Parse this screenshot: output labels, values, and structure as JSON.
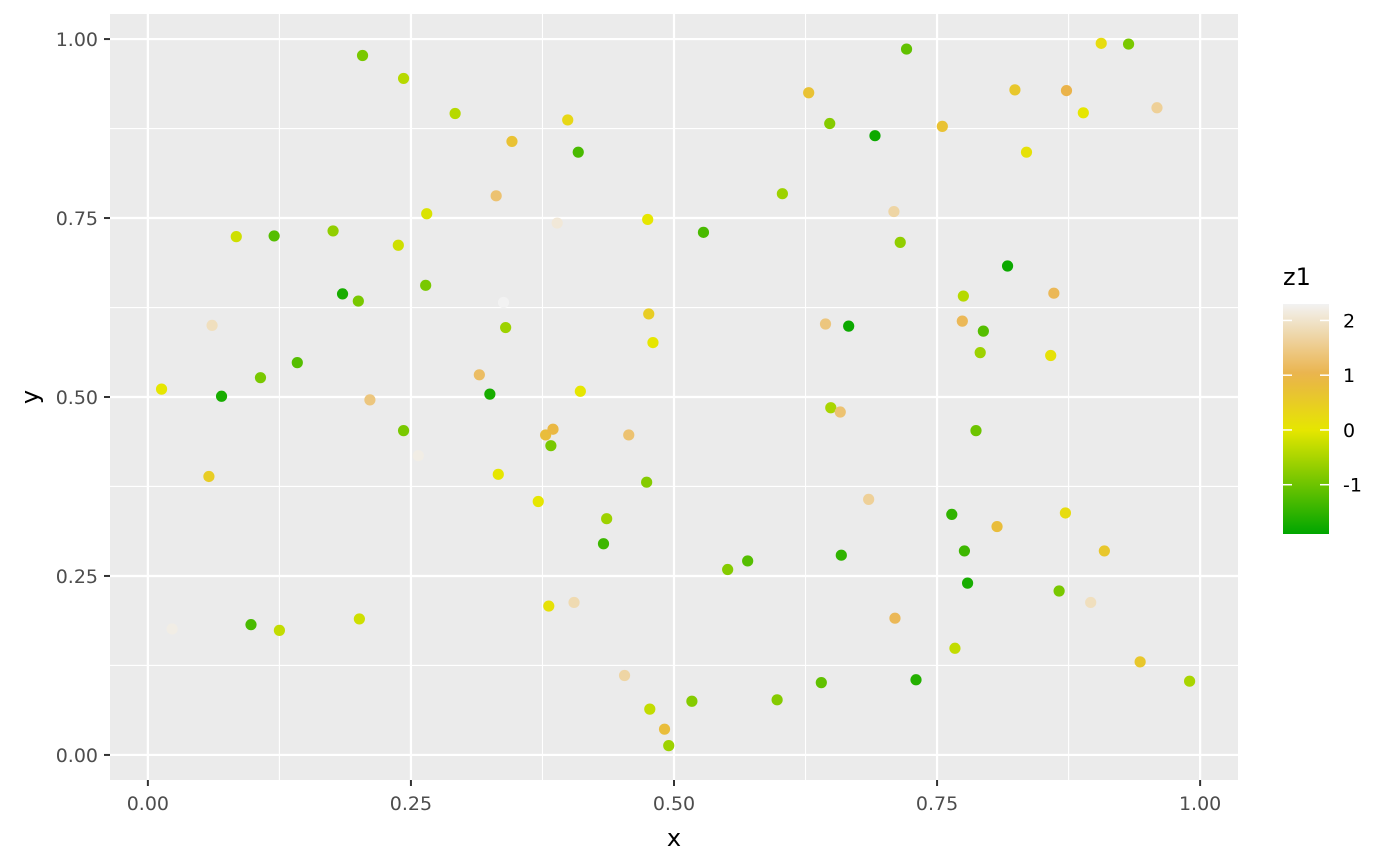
{
  "chart_data": {
    "type": "scatter",
    "xlabel": "x",
    "ylabel": "y",
    "xlim": [
      -0.036,
      1.036
    ],
    "ylim": [
      -0.035,
      1.035
    ],
    "x_ticks": [
      0,
      0.25,
      0.5,
      0.75,
      1
    ],
    "x_tick_labels": [
      "0.00",
      "0.25",
      "0.50",
      "0.75",
      "1.00"
    ],
    "y_ticks": [
      0,
      0.25,
      0.5,
      0.75,
      1
    ],
    "y_tick_labels": [
      "0.00",
      "0.25",
      "0.50",
      "0.75",
      "1.00"
    ],
    "grid": true,
    "legend": {
      "title": "z1",
      "placement": "right",
      "range": [
        -1.9,
        2.3
      ],
      "ticks": [
        -1,
        0,
        1,
        2
      ],
      "tick_labels": [
        "-1",
        "0",
        "1",
        "2"
      ],
      "colors": [
        "#00a600",
        "#e6e600",
        "#eab34a",
        "#f2f2f2"
      ],
      "color_stops": [
        -1.9,
        0,
        1,
        2.3
      ]
    },
    "panel_background": "#ebebeb",
    "grid_color": "#ffffff",
    "points": [
      {
        "x": 0.013,
        "y": 0.511,
        "z": 0.0
      },
      {
        "x": 0.023,
        "y": 0.176,
        "z": 2.2
      },
      {
        "x": 0.058,
        "y": 0.389,
        "z": 0.5
      },
      {
        "x": 0.061,
        "y": 0.6,
        "z": 1.9
      },
      {
        "x": 0.07,
        "y": 0.501,
        "z": -1.7
      },
      {
        "x": 0.084,
        "y": 0.724,
        "z": -0.2
      },
      {
        "x": 0.098,
        "y": 0.182,
        "z": -1.3
      },
      {
        "x": 0.107,
        "y": 0.527,
        "z": -0.9
      },
      {
        "x": 0.12,
        "y": 0.725,
        "z": -1.2
      },
      {
        "x": 0.125,
        "y": 0.174,
        "z": -0.3
      },
      {
        "x": 0.142,
        "y": 0.548,
        "z": -1.2
      },
      {
        "x": 0.176,
        "y": 0.732,
        "z": -0.7
      },
      {
        "x": 0.185,
        "y": 0.644,
        "z": -1.7
      },
      {
        "x": 0.2,
        "y": 0.634,
        "z": -0.9
      },
      {
        "x": 0.201,
        "y": 0.19,
        "z": -0.2
      },
      {
        "x": 0.204,
        "y": 0.977,
        "z": -0.9
      },
      {
        "x": 0.211,
        "y": 0.496,
        "z": 1.4
      },
      {
        "x": 0.238,
        "y": 0.712,
        "z": -0.2
      },
      {
        "x": 0.243,
        "y": 0.945,
        "z": -0.4
      },
      {
        "x": 0.243,
        "y": 0.453,
        "z": -0.9
      },
      {
        "x": 0.257,
        "y": 0.418,
        "z": 2.2
      },
      {
        "x": 0.264,
        "y": 0.656,
        "z": -0.9
      },
      {
        "x": 0.265,
        "y": 0.756,
        "z": -0.1
      },
      {
        "x": 0.292,
        "y": 0.896,
        "z": -0.4
      },
      {
        "x": 0.315,
        "y": 0.531,
        "z": 1.2
      },
      {
        "x": 0.325,
        "y": 0.504,
        "z": -1.7
      },
      {
        "x": 0.331,
        "y": 0.781,
        "z": 1.3
      },
      {
        "x": 0.333,
        "y": 0.392,
        "z": 0.0
      },
      {
        "x": 0.338,
        "y": 0.632,
        "z": 2.3
      },
      {
        "x": 0.34,
        "y": 0.597,
        "z": -0.6
      },
      {
        "x": 0.346,
        "y": 0.857,
        "z": 0.7
      },
      {
        "x": 0.371,
        "y": 0.354,
        "z": 0.0
      },
      {
        "x": 0.378,
        "y": 0.447,
        "z": 0.8
      },
      {
        "x": 0.381,
        "y": 0.208,
        "z": 0.1
      },
      {
        "x": 0.383,
        "y": 0.432,
        "z": -0.9
      },
      {
        "x": 0.385,
        "y": 0.455,
        "z": 0.9
      },
      {
        "x": 0.389,
        "y": 0.743,
        "z": 2.1
      },
      {
        "x": 0.399,
        "y": 0.887,
        "z": 0.3
      },
      {
        "x": 0.405,
        "y": 0.213,
        "z": 1.8
      },
      {
        "x": 0.409,
        "y": 0.842,
        "z": -1.3
      },
      {
        "x": 0.411,
        "y": 0.508,
        "z": 0.0
      },
      {
        "x": 0.433,
        "y": 0.295,
        "z": -1.4
      },
      {
        "x": 0.436,
        "y": 0.33,
        "z": -0.6
      },
      {
        "x": 0.453,
        "y": 0.111,
        "z": 1.7
      },
      {
        "x": 0.457,
        "y": 0.447,
        "z": 1.3
      },
      {
        "x": 0.474,
        "y": 0.381,
        "z": -0.8
      },
      {
        "x": 0.475,
        "y": 0.748,
        "z": 0.0
      },
      {
        "x": 0.476,
        "y": 0.616,
        "z": 0.5
      },
      {
        "x": 0.477,
        "y": 0.064,
        "z": -0.3
      },
      {
        "x": 0.48,
        "y": 0.576,
        "z": 0.0
      },
      {
        "x": 0.491,
        "y": 0.036,
        "z": 0.8
      },
      {
        "x": 0.495,
        "y": 0.013,
        "z": -0.6
      },
      {
        "x": 0.517,
        "y": 0.075,
        "z": -0.8
      },
      {
        "x": 0.528,
        "y": 0.73,
        "z": -1.3
      },
      {
        "x": 0.551,
        "y": 0.259,
        "z": -0.8
      },
      {
        "x": 0.57,
        "y": 0.271,
        "z": -1.2
      },
      {
        "x": 0.598,
        "y": 0.077,
        "z": -0.8
      },
      {
        "x": 0.603,
        "y": 0.784,
        "z": -0.6
      },
      {
        "x": 0.628,
        "y": 0.925,
        "z": 0.7
      },
      {
        "x": 0.64,
        "y": 0.101,
        "z": -1.1
      },
      {
        "x": 0.644,
        "y": 0.602,
        "z": 1.4
      },
      {
        "x": 0.648,
        "y": 0.882,
        "z": -0.8
      },
      {
        "x": 0.649,
        "y": 0.485,
        "z": -0.5
      },
      {
        "x": 0.658,
        "y": 0.479,
        "z": 1.3
      },
      {
        "x": 0.659,
        "y": 0.279,
        "z": -1.5
      },
      {
        "x": 0.666,
        "y": 0.599,
        "z": -1.8
      },
      {
        "x": 0.685,
        "y": 0.357,
        "z": 1.6
      },
      {
        "x": 0.691,
        "y": 0.865,
        "z": -1.8
      },
      {
        "x": 0.709,
        "y": 0.759,
        "z": 1.7
      },
      {
        "x": 0.71,
        "y": 0.191,
        "z": 1.1
      },
      {
        "x": 0.715,
        "y": 0.716,
        "z": -0.7
      },
      {
        "x": 0.721,
        "y": 0.986,
        "z": -1.1
      },
      {
        "x": 0.73,
        "y": 0.105,
        "z": -1.6
      },
      {
        "x": 0.755,
        "y": 0.878,
        "z": 0.7
      },
      {
        "x": 0.764,
        "y": 0.336,
        "z": -1.5
      },
      {
        "x": 0.767,
        "y": 0.149,
        "z": -0.3
      },
      {
        "x": 0.774,
        "y": 0.606,
        "z": 1.1
      },
      {
        "x": 0.775,
        "y": 0.641,
        "z": -0.4
      },
      {
        "x": 0.776,
        "y": 0.285,
        "z": -1.4
      },
      {
        "x": 0.779,
        "y": 0.24,
        "z": -1.7
      },
      {
        "x": 0.787,
        "y": 0.453,
        "z": -1.0
      },
      {
        "x": 0.791,
        "y": 0.562,
        "z": -0.6
      },
      {
        "x": 0.794,
        "y": 0.592,
        "z": -1.2
      },
      {
        "x": 0.807,
        "y": 0.319,
        "z": 0.8
      },
      {
        "x": 0.817,
        "y": 0.683,
        "z": -1.8
      },
      {
        "x": 0.824,
        "y": 0.929,
        "z": 0.6
      },
      {
        "x": 0.835,
        "y": 0.842,
        "z": 0.1
      },
      {
        "x": 0.858,
        "y": 0.558,
        "z": 0.1
      },
      {
        "x": 0.861,
        "y": 0.645,
        "z": 1.1
      },
      {
        "x": 0.866,
        "y": 0.229,
        "z": -0.9
      },
      {
        "x": 0.872,
        "y": 0.338,
        "z": 0.2
      },
      {
        "x": 0.873,
        "y": 0.928,
        "z": 1.0
      },
      {
        "x": 0.889,
        "y": 0.897,
        "z": 0.0
      },
      {
        "x": 0.896,
        "y": 0.213,
        "z": 1.9
      },
      {
        "x": 0.906,
        "y": 0.994,
        "z": 0.2
      },
      {
        "x": 0.909,
        "y": 0.285,
        "z": 0.6
      },
      {
        "x": 0.932,
        "y": 0.993,
        "z": -0.9
      },
      {
        "x": 0.943,
        "y": 0.13,
        "z": 0.6
      },
      {
        "x": 0.959,
        "y": 0.904,
        "z": 1.6
      },
      {
        "x": 0.99,
        "y": 0.103,
        "z": -0.5
      }
    ]
  }
}
